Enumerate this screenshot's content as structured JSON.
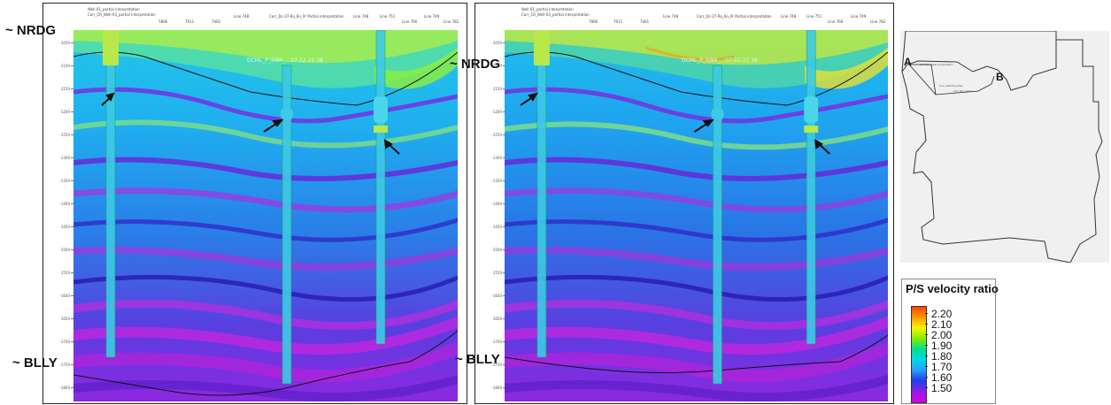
{
  "horizons": {
    "top": "~ NRDG",
    "base": "~ BLLY"
  },
  "left_panel": {
    "title": "DCML_P_SWA_...07-22-25 38",
    "header_lines": [
      "Well-01_partial interpretation",
      "Corr_CR_Well-03_partial interpretation",
      "7866",
      "7911",
      "7461",
      "Line 748",
      "Corr_Dc-37-Ra_6n_Pr Partial interpretation",
      "Line 748",
      "Line 751",
      "Line 766",
      "Line 749",
      "Line 782"
    ],
    "depth_ticks": [
      "-1050",
      "-1100",
      "-1150",
      "-1200",
      "-1250",
      "-1300",
      "-1350",
      "-1400",
      "-1450",
      "-1500",
      "-1550",
      "-1600",
      "-1650",
      "-1700",
      "-1750",
      "-1800"
    ]
  },
  "right_panel": {
    "title": "DCML_P_SWA_...07-22-25 38",
    "header_lines": [
      "Well-01_partial interpretation",
      "Corr_CR_Well-03_partial interpretation",
      "7866",
      "7911",
      "7461",
      "Line 748",
      "Corr_Dc-37-Ra_6n_Pr Partial interpretation",
      "Line 748",
      "Line 751",
      "Line 766",
      "Line 749",
      "Line 782"
    ],
    "depth_ticks": [
      "-1050",
      "-1100",
      "-1150",
      "-1200",
      "-1250",
      "-1300",
      "-1350",
      "-1400",
      "-1450",
      "-1500",
      "-1550",
      "-1600",
      "-1650",
      "-1700",
      "-1750",
      "-1800"
    ]
  },
  "map": {
    "point_a": "A",
    "point_b": "B",
    "texts": [
      "Well-01 partial interpretation",
      "Corr_Well-03 partial",
      "Line 751 partial"
    ]
  },
  "legend": {
    "title": "P/S velocity ratio",
    "ticks": [
      "2.20",
      "2.10",
      "2.00",
      "1.90",
      "1.80",
      "1.70",
      "1.60",
      "1.50"
    ],
    "colors": [
      "#ff4400",
      "#ff9900",
      "#f5f500",
      "#88ee00",
      "#00e08a",
      "#00d8e8",
      "#2aa0ff",
      "#1f40e6",
      "#8a1fe8",
      "#e000e0"
    ]
  }
}
